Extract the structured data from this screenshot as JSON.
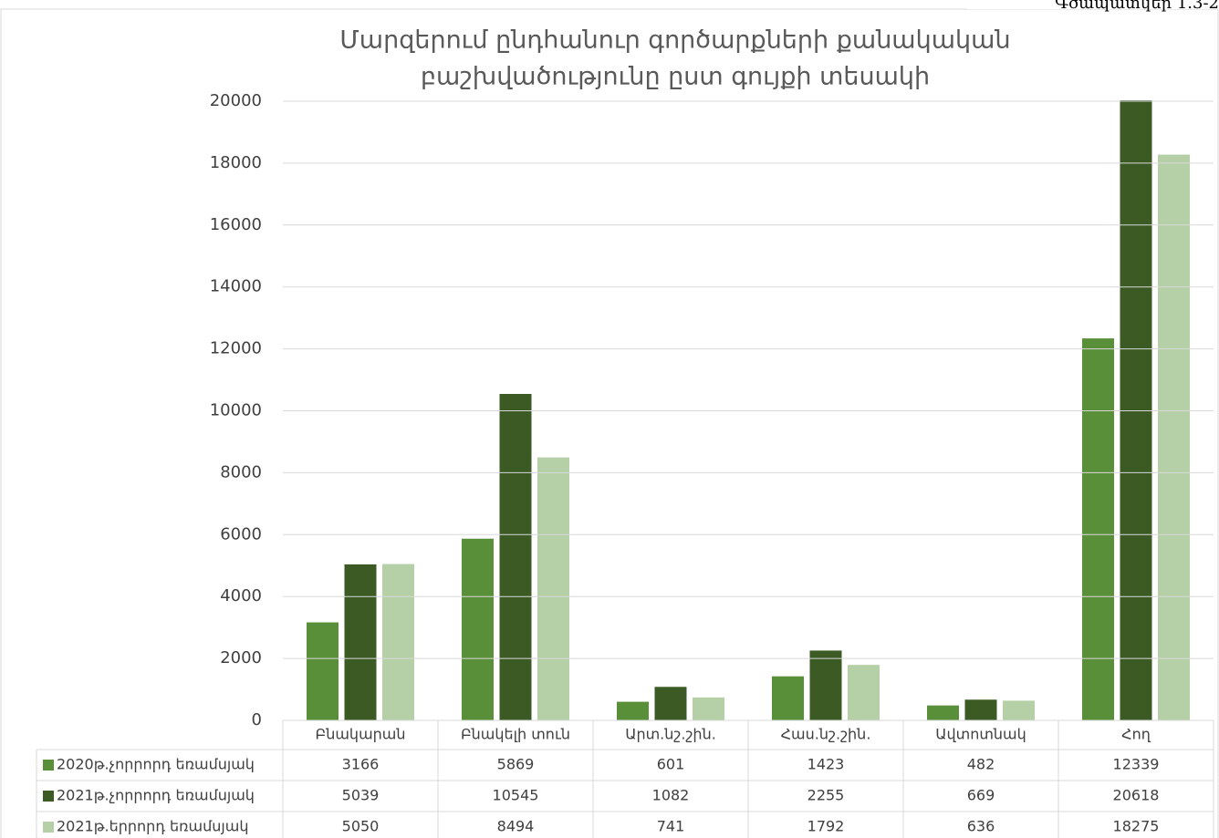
{
  "note": "Գծապատկեր 1.3-2",
  "chart_data": {
    "type": "bar",
    "title": [
      "Մարզերում ընդհանուր գործարքների քանակական",
      "բաշխվածությունը ըստ գույքի տեսակի"
    ],
    "categories": [
      "Բնակարան",
      "Բնակելի տուն",
      "Արտ.նշ.շին.",
      "Հաս.նշ.շին.",
      "Ավտոտնակ",
      "Հող"
    ],
    "series": [
      {
        "name": "2020թ.չորրորդ եռամսյակ",
        "color": "#5a8f3a",
        "values": [
          3166,
          5869,
          601,
          1423,
          482,
          12339
        ]
      },
      {
        "name": "2021թ.չորրորդ եռամսյակ",
        "color": "#3b5a24",
        "values": [
          5039,
          10545,
          1082,
          2255,
          669,
          20618
        ]
      },
      {
        "name": "2021թ.երրորդ եռամսյակ",
        "color": "#b5d0a6",
        "values": [
          5050,
          8494,
          741,
          1792,
          636,
          18275
        ]
      }
    ],
    "ylim": [
      0,
      20000
    ],
    "yticks": [
      0,
      2000,
      4000,
      6000,
      8000,
      10000,
      12000,
      14000,
      16000,
      18000,
      20000
    ],
    "grid": true
  }
}
